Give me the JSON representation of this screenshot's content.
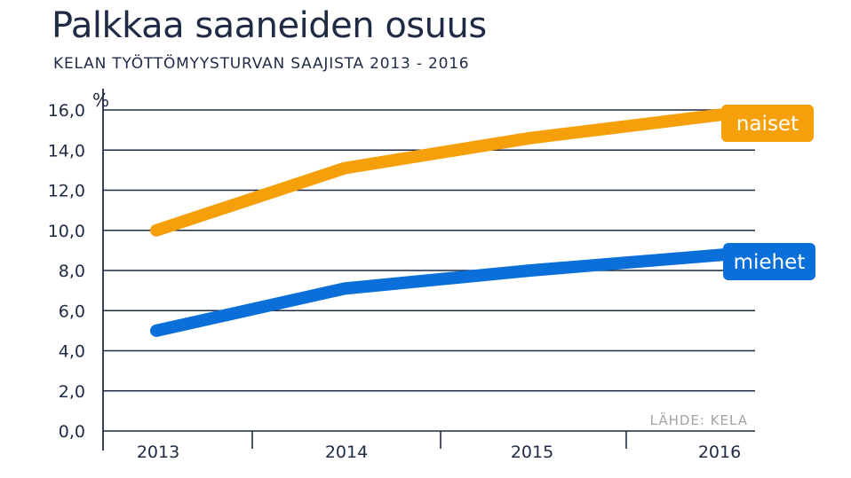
{
  "header": {
    "title": "Palkkaa saaneiden osuus",
    "subtitle": "KELAN TYÖTTÖMYYSTURVAN SAAJISTA 2013 - 2016"
  },
  "source": "LÄHDE: KELA",
  "chart_data": {
    "type": "line",
    "title": "Palkkaa saaneiden osuus",
    "subtitle": "KELAN TYÖTTÖMYYSTURVAN SAAJISTA 2013 - 2016",
    "ylabel": "%",
    "xlabel": "",
    "categories": [
      "2013",
      "2014",
      "2015",
      "2016"
    ],
    "ylim": [
      0,
      16
    ],
    "yticks": [
      0,
      2,
      4,
      6,
      8,
      10,
      12,
      14,
      16
    ],
    "ytick_labels": [
      "0,0",
      "2,0",
      "4,0",
      "6,0",
      "8,0",
      "10,0",
      "12,0",
      "14,0",
      "16,0"
    ],
    "grid": true,
    "legend": "inline labels at line ends",
    "series": [
      {
        "name": "naiset",
        "color": "#f5a00b",
        "values": [
          10.0,
          13.1,
          14.6,
          15.8
        ]
      },
      {
        "name": "miehet",
        "color": "#0a6fd8",
        "values": [
          5.0,
          7.1,
          8.0,
          8.8
        ]
      }
    ]
  }
}
